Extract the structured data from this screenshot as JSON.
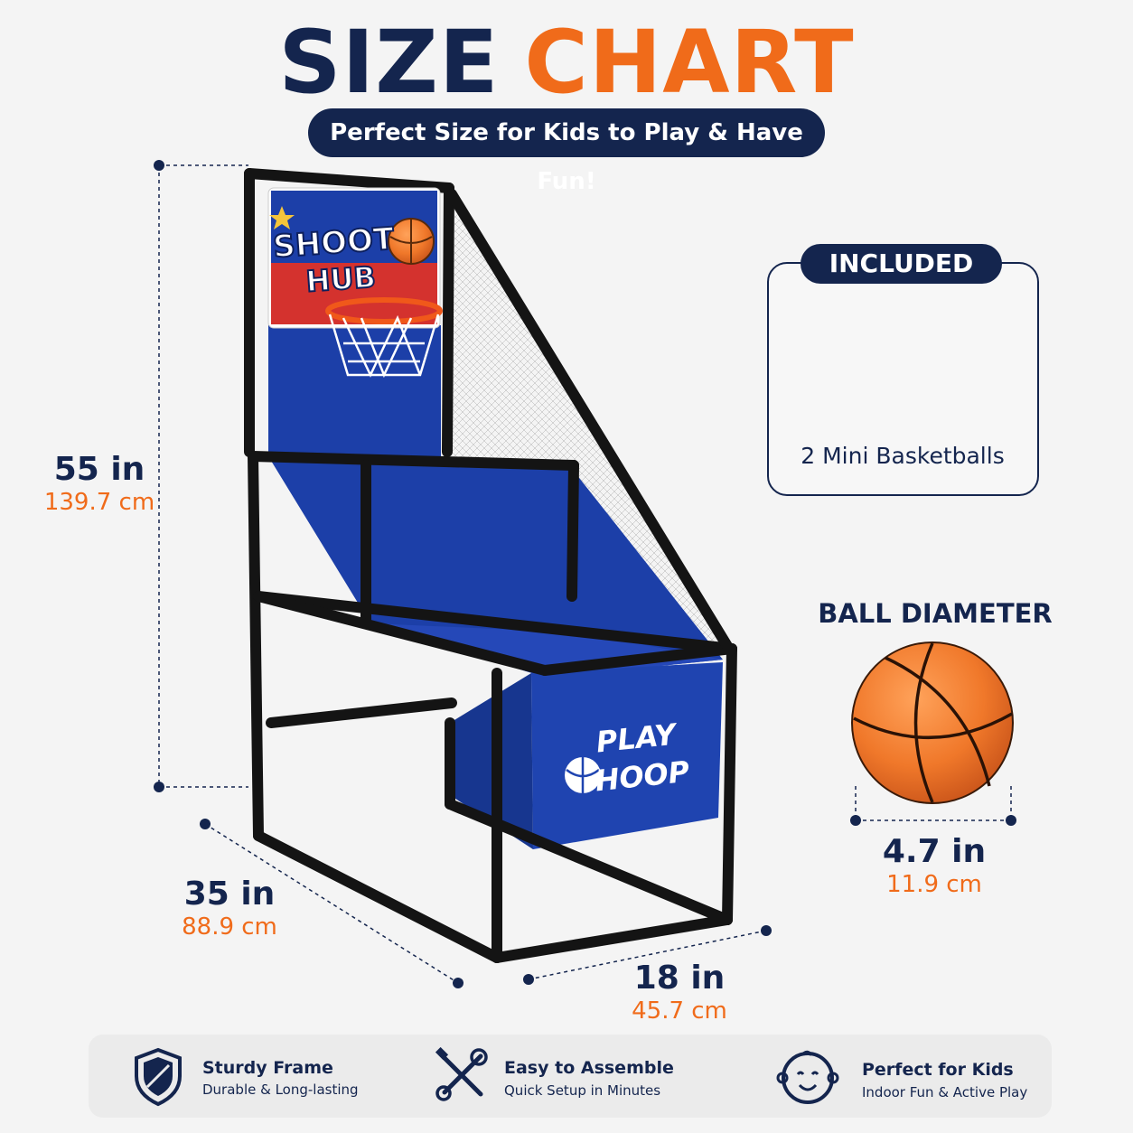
{
  "header": {
    "title_part1": "SIZE",
    "title_part2": "CHART",
    "subtitle": "Perfect Size for Kids to Play & Have Fun!"
  },
  "dimensions": {
    "height": {
      "imperial": "55 in",
      "metric": "139.7 cm"
    },
    "depth": {
      "imperial": "35 in",
      "metric": "88.9 cm"
    },
    "width": {
      "imperial": "18 in",
      "metric": "45.7 cm"
    },
    "ball": {
      "imperial": "4.7 in",
      "metric": "11.9 cm"
    }
  },
  "product": {
    "backboard_text_line1": "SHOOT",
    "backboard_text_line2": "HUB",
    "base_text_line1": "PLAY",
    "base_text_line2": "HOOP"
  },
  "included": {
    "label": "INCLUDED",
    "text": "2 Mini Basketballs"
  },
  "ball_diameter_label": "BALL DIAMETER",
  "features": [
    {
      "title": "Sturdy Frame",
      "subtitle": "Durable & Long-lasting",
      "icon": "shield-icon"
    },
    {
      "title": "Easy to Assemble",
      "subtitle": "Quick Setup in Minutes",
      "icon": "tools-icon"
    },
    {
      "title": "Perfect for Kids",
      "subtitle": "Indoor Fun & Active Play",
      "icon": "baby-face-icon"
    }
  ],
  "colors": {
    "navy": "#14254e",
    "orange": "#f06b1a",
    "court_blue": "#1c3fa8",
    "ball_orange": "#f0782a"
  }
}
